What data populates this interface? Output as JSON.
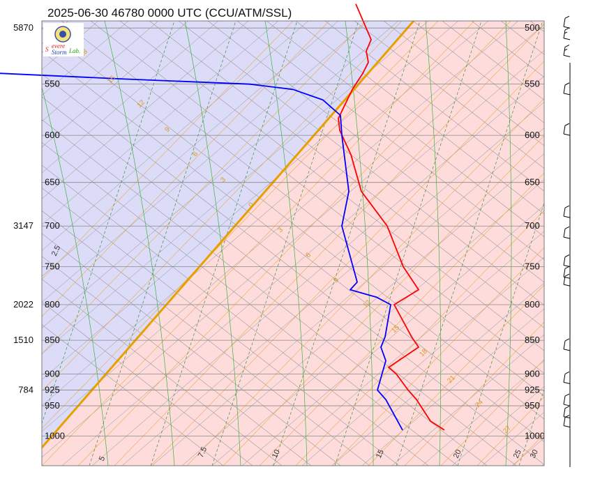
{
  "chart_data": {
    "type": "line",
    "title": "2025-06-30 46780 0000 UTC (CCU/ATM/SSL)",
    "pressure_levels": [
      500,
      550,
      600,
      650,
      700,
      750,
      800,
      850,
      900,
      925,
      950,
      1000
    ],
    "height_labels": [
      {
        "p": 500,
        "h": "5870"
      },
      {
        "p": 700,
        "h": "3147"
      },
      {
        "p": 800,
        "h": "2022"
      },
      {
        "p": 850,
        "h": "1510"
      },
      {
        "p": 925,
        "h": "784"
      }
    ],
    "isotherm_labels": [
      "5",
      "7.5",
      "10",
      "15",
      "20",
      "25",
      "30",
      "25",
      "2.5"
    ],
    "adiabat_labels": [
      "18",
      "15",
      "12",
      "9",
      "6",
      "3",
      "0",
      "3",
      "6",
      "9",
      "12",
      "15",
      "18",
      "21",
      "24",
      "27"
    ],
    "series": [
      {
        "name": "",
        "color": "#ff0000",
        "x_at_p": [
          [
            990,
            637
          ],
          [
            975,
            617
          ],
          [
            940,
            597
          ],
          [
            925,
            585
          ],
          [
            900,
            568
          ],
          [
            890,
            557
          ],
          [
            860,
            600
          ],
          [
            845,
            590
          ],
          [
            800,
            565
          ],
          [
            780,
            600
          ],
          [
            750,
            578
          ],
          [
            700,
            555
          ],
          [
            660,
            518
          ],
          [
            620,
            503
          ],
          [
            595,
            487
          ],
          [
            583,
            485
          ],
          [
            555,
            505
          ],
          [
            540,
            520
          ],
          [
            530,
            528
          ],
          [
            520,
            525
          ],
          [
            510,
            532
          ],
          [
            480,
            510
          ]
        ]
      },
      {
        "name": "",
        "color": "#0000ff",
        "x_at_p": [
          [
            990,
            577
          ],
          [
            940,
            553
          ],
          [
            925,
            541
          ],
          [
            880,
            553
          ],
          [
            860,
            546
          ],
          [
            845,
            552
          ],
          [
            800,
            560
          ],
          [
            790,
            540
          ],
          [
            780,
            502
          ],
          [
            770,
            512
          ],
          [
            700,
            490
          ],
          [
            660,
            500
          ],
          [
            600,
            490
          ],
          [
            580,
            488
          ],
          [
            565,
            463
          ],
          [
            555,
            420
          ],
          [
            550,
            358
          ],
          [
            545,
            170
          ],
          [
            540,
            0
          ]
        ]
      }
    ],
    "wind_barbs": [
      {
        "p": 500,
        "speed_kt": 10
      },
      {
        "p": 510,
        "speed_kt": 15
      },
      {
        "p": 525,
        "speed_kt": 15
      },
      {
        "p": 560,
        "speed_kt": 10
      },
      {
        "p": 600,
        "speed_kt": 10
      },
      {
        "p": 690,
        "speed_kt": 10
      },
      {
        "p": 715,
        "speed_kt": 10
      },
      {
        "p": 750,
        "speed_kt": 10
      },
      {
        "p": 765,
        "speed_kt": 10
      },
      {
        "p": 775,
        "speed_kt": 10
      },
      {
        "p": 865,
        "speed_kt": 10
      },
      {
        "p": 915,
        "speed_kt": 10
      },
      {
        "p": 950,
        "speed_kt": 10
      },
      {
        "p": 970,
        "speed_kt": 10
      },
      {
        "p": 985,
        "speed_kt": 10
      }
    ],
    "ylim": [
      500,
      1000
    ],
    "grid": true
  },
  "logo": {
    "text_s": "S",
    "text_severe": "evere",
    "text_storm": "Storm",
    "text_lab": "Lab."
  },
  "colors": {
    "stable_region": "#ffdcdc",
    "unstable_region": "#dcdcf8",
    "temperature": "#ff0000",
    "dewpoint": "#0000ff",
    "isobar": "#888888",
    "isotherm": "#999999",
    "dry_adiabat": "#e8a94a",
    "moist_adiabat": "#3bb33b",
    "mixing_ratio": "#3b8f3b",
    "lcl_line": "#e8a000"
  }
}
